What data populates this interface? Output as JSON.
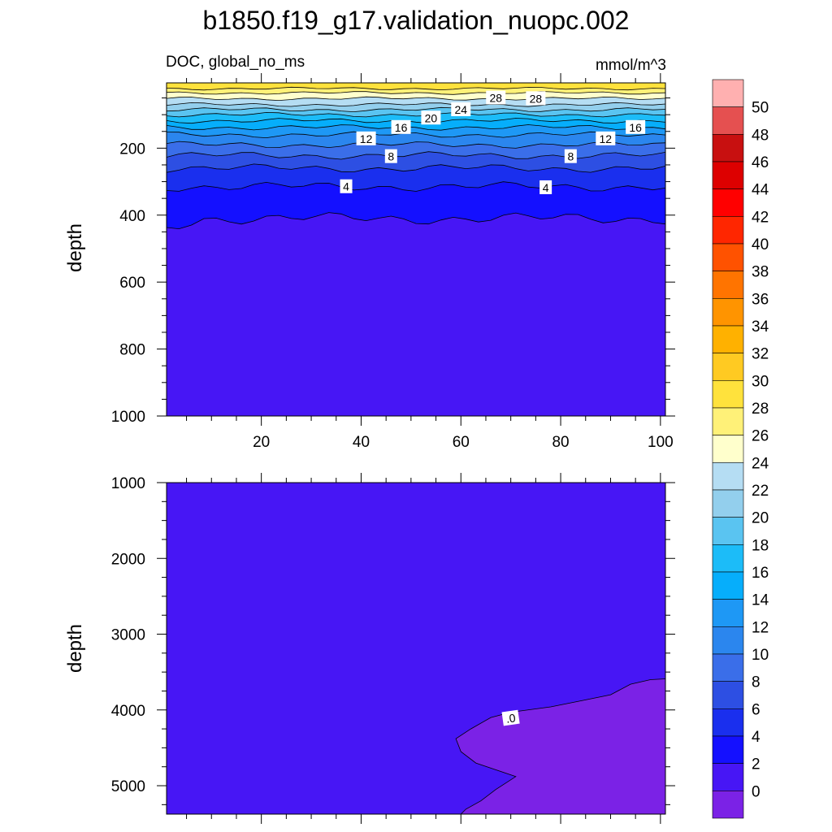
{
  "title": "b1850.f19_g17.validation_nuopc.002",
  "colors": {
    "levels": [
      0,
      2,
      4,
      6,
      8,
      10,
      12,
      14,
      16,
      18,
      20,
      22,
      24,
      26,
      28,
      30,
      32,
      34,
      36,
      38,
      40,
      42,
      44,
      46,
      48,
      50
    ],
    "fills": [
      "#7b22e6",
      "#4716f5",
      "#1410ff",
      "#1a2fee",
      "#2d4fe3",
      "#3a6ee9",
      "#2b86ee",
      "#1e98f5",
      "#06aefb",
      "#1cbcf8",
      "#5ac4f1",
      "#93cfed",
      "#b5ddf3",
      "#ffffcc",
      "#fff178",
      "#ffe23c",
      "#ffca22",
      "#ffb100",
      "#ff9400",
      "#ff7400",
      "#ff5200",
      "#ff2600",
      "#ff0000",
      "#dd0000",
      "#c81010",
      "#e55050",
      "#ffb0b0"
    ]
  },
  "chart_data": [
    {
      "type": "contour",
      "panel": "upper",
      "title_left": "DOC, global_no_ms",
      "title_right": "mmol/m^3",
      "xlabel": "",
      "ylabel": "depth",
      "xlim": [
        1,
        101
      ],
      "ylim": [
        1000,
        5
      ],
      "y_inverted": true,
      "x_ticks": [
        20,
        40,
        60,
        80,
        100
      ],
      "y_ticks": [
        200,
        400,
        600,
        800,
        1000
      ],
      "contour_levels_depth": [
        {
          "level": 28,
          "depth": 22
        },
        {
          "level": 26,
          "depth": 35
        },
        {
          "level": 24,
          "depth": 52
        },
        {
          "level": 22,
          "depth": 70
        },
        {
          "level": 20,
          "depth": 85
        },
        {
          "level": 18,
          "depth": 100
        },
        {
          "level": 16,
          "depth": 118
        },
        {
          "level": 14,
          "depth": 138
        },
        {
          "level": 12,
          "depth": 160
        },
        {
          "level": 10,
          "depth": 190
        },
        {
          "level": 8,
          "depth": 222
        },
        {
          "level": 6,
          "depth": 260
        },
        {
          "level": 4,
          "depth": 315
        },
        {
          "level": 2,
          "depth": 410
        }
      ],
      "contour_labels": [
        {
          "text": "28",
          "x": 67,
          "depth": 50
        },
        {
          "text": "28",
          "x": 75,
          "depth": 52
        },
        {
          "text": "24",
          "x": 60,
          "depth": 85
        },
        {
          "text": "20",
          "x": 54,
          "depth": 110
        },
        {
          "text": "16",
          "x": 48,
          "depth": 138
        },
        {
          "text": "16",
          "x": 95,
          "depth": 138
        },
        {
          "text": "12",
          "x": 41,
          "depth": 172
        },
        {
          "text": "12",
          "x": 89,
          "depth": 172
        },
        {
          "text": "8",
          "x": 46,
          "depth": 225
        },
        {
          "text": "8",
          "x": 82,
          "depth": 225
        },
        {
          "text": "4",
          "x": 37,
          "depth": 315
        },
        {
          "text": "4",
          "x": 77,
          "depth": 318
        }
      ]
    },
    {
      "type": "contour",
      "panel": "lower",
      "xlabel": "",
      "ylabel": "depth",
      "xlim": [
        1,
        101
      ],
      "ylim": [
        5375,
        1000
      ],
      "y_inverted": true,
      "x_ticks": [
        20,
        40,
        60,
        80,
        100
      ],
      "y_ticks": [
        1000,
        2000,
        3000,
        4000,
        5000
      ],
      "zero_region_boundary": [
        [
          101,
          3590
        ],
        [
          98,
          3600
        ],
        [
          94,
          3660
        ],
        [
          90,
          3800
        ],
        [
          84,
          3880
        ],
        [
          78,
          3960
        ],
        [
          70,
          4030
        ],
        [
          66,
          4100
        ],
        [
          62,
          4250
        ],
        [
          59,
          4380
        ],
        [
          60,
          4550
        ],
        [
          63,
          4700
        ],
        [
          71,
          4880
        ],
        [
          67,
          5050
        ],
        [
          64,
          5200
        ],
        [
          61,
          5310
        ],
        [
          60,
          5375
        ]
      ],
      "contour_labels": [
        {
          "text": ".0",
          "x": 70,
          "depth": 4110
        }
      ]
    },
    {
      "type": "colorbar",
      "labels": [
        "50",
        "48",
        "46",
        "44",
        "42",
        "40",
        "38",
        "36",
        "34",
        "32",
        "30",
        "28",
        "26",
        "24",
        "22",
        "20",
        "18",
        "16",
        "14",
        "12",
        "10",
        "8",
        "6",
        "4",
        "2",
        "0"
      ]
    }
  ]
}
